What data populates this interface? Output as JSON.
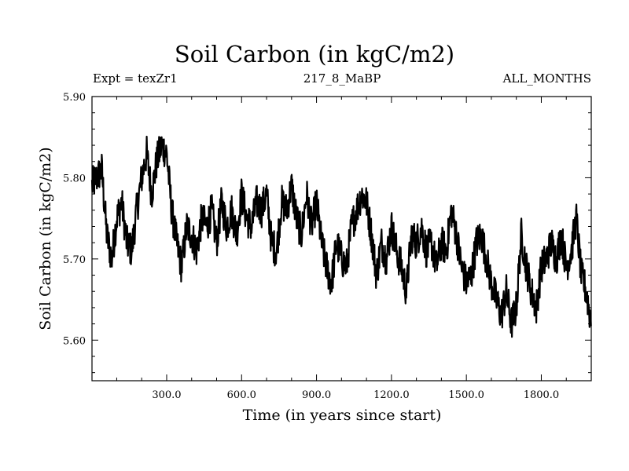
{
  "chart_data": {
    "type": "line",
    "title": "Soil Carbon (in kgC/m2)",
    "subtitle_left": "Expt = texZr1",
    "subtitle_center": "217_8_MaBP",
    "subtitle_right": "ALL_MONTHS",
    "xlabel": "Time (in years since start)",
    "ylabel": "Soil Carbon (in kgC/m2)",
    "xlim": [
      1,
      2000
    ],
    "ylim": [
      5.55,
      5.9
    ],
    "x_ticks": [
      300,
      600,
      900,
      1200,
      1500,
      1800
    ],
    "x_tick_labels": [
      "300.0",
      "600.0",
      "900.0",
      "1200.0",
      "1500.0",
      "1800.0"
    ],
    "y_ticks": [
      5.6,
      5.7,
      5.8,
      5.9
    ],
    "y_tick_labels": [
      "5.60",
      "5.70",
      "5.80",
      "5.90"
    ],
    "grid": false,
    "series": [
      {
        "name": "Soil Carbon",
        "color": "#000000",
        "x": [
          0,
          20,
          40,
          60,
          80,
          100,
          120,
          140,
          160,
          180,
          200,
          220,
          240,
          260,
          280,
          300,
          320,
          340,
          360,
          380,
          400,
          420,
          440,
          460,
          480,
          500,
          520,
          540,
          560,
          580,
          600,
          620,
          640,
          660,
          680,
          700,
          720,
          740,
          760,
          780,
          800,
          820,
          840,
          860,
          880,
          900,
          920,
          940,
          960,
          980,
          1000,
          1020,
          1040,
          1060,
          1080,
          1100,
          1120,
          1140,
          1160,
          1180,
          1200,
          1220,
          1240,
          1260,
          1280,
          1300,
          1320,
          1340,
          1360,
          1380,
          1400,
          1420,
          1440,
          1460,
          1480,
          1500,
          1520,
          1540,
          1560,
          1580,
          1600,
          1620,
          1640,
          1660,
          1680,
          1700,
          1720,
          1740,
          1760,
          1780,
          1800,
          1820,
          1840,
          1860,
          1880,
          1900,
          1920,
          1940,
          1960,
          1980,
          2000
        ],
        "values": [
          5.79,
          5.8,
          5.81,
          5.73,
          5.7,
          5.75,
          5.77,
          5.72,
          5.71,
          5.76,
          5.8,
          5.83,
          5.78,
          5.82,
          5.84,
          5.83,
          5.76,
          5.72,
          5.69,
          5.74,
          5.73,
          5.71,
          5.75,
          5.74,
          5.76,
          5.72,
          5.77,
          5.74,
          5.76,
          5.73,
          5.78,
          5.75,
          5.74,
          5.77,
          5.76,
          5.78,
          5.72,
          5.71,
          5.77,
          5.76,
          5.79,
          5.75,
          5.73,
          5.78,
          5.74,
          5.77,
          5.72,
          5.69,
          5.67,
          5.72,
          5.7,
          5.69,
          5.74,
          5.76,
          5.78,
          5.77,
          5.73,
          5.68,
          5.72,
          5.7,
          5.74,
          5.71,
          5.69,
          5.66,
          5.73,
          5.72,
          5.74,
          5.71,
          5.72,
          5.69,
          5.72,
          5.71,
          5.76,
          5.73,
          5.69,
          5.67,
          5.68,
          5.72,
          5.73,
          5.7,
          5.67,
          5.65,
          5.63,
          5.66,
          5.62,
          5.64,
          5.73,
          5.69,
          5.66,
          5.64,
          5.69,
          5.7,
          5.72,
          5.7,
          5.73,
          5.69,
          5.71,
          5.75,
          5.68,
          5.66,
          5.62
        ],
        "noise": 0.022
      }
    ]
  }
}
